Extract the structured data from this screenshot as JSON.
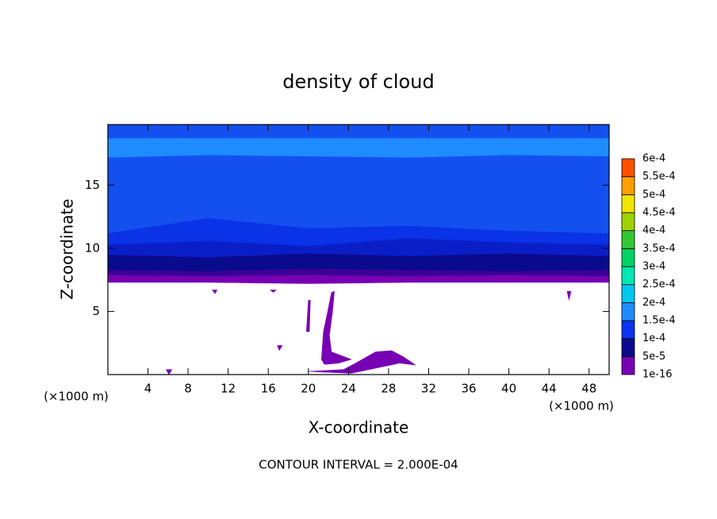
{
  "chart_data": {
    "type": "contour",
    "title": "density of cloud",
    "x_label": "X-coordinate",
    "y_label": "Z-coordinate",
    "x_unit_left": "(×1000 m)",
    "x_unit_right": "(×1000 m)",
    "note": "CONTOUR INTERVAL = 2.000E-04",
    "xlim": [
      0,
      50
    ],
    "ylim": [
      0,
      19.8
    ],
    "xticks": [
      4,
      8,
      12,
      16,
      20,
      24,
      28,
      32,
      36,
      40,
      44,
      48
    ],
    "yticks": [
      5,
      10,
      15
    ],
    "colorbar": {
      "levels": [
        {
          "value": 1e-16,
          "label": "1e-16"
        },
        {
          "value": 5e-05,
          "label": "5e-5"
        },
        {
          "value": 0.0001,
          "label": "1e-4"
        },
        {
          "value": 0.00015,
          "label": "1.5e-4"
        },
        {
          "value": 0.0002,
          "label": "2e-4"
        },
        {
          "value": 0.00025,
          "label": "2.5e-4"
        },
        {
          "value": 0.0003,
          "label": "3e-4"
        },
        {
          "value": 0.00035,
          "label": "3.5e-4"
        },
        {
          "value": 0.0004,
          "label": "4e-4"
        },
        {
          "value": 0.00045,
          "label": "4.5e-4"
        },
        {
          "value": 0.0005,
          "label": "5e-4"
        },
        {
          "value": 0.00055,
          "label": "5.5e-4"
        },
        {
          "value": 0.0006,
          "label": "6e-4"
        }
      ],
      "colors": [
        "#7800b4",
        "#0a0a8c",
        "#0a32f0",
        "#1e8cff",
        "#00c8f0",
        "#00e6b4",
        "#00d264",
        "#32c832",
        "#a0d200",
        "#f0e600",
        "#ffa000",
        "#ff5000"
      ]
    },
    "regions": [
      {
        "color": "#7800b4",
        "x": [
          0,
          10,
          20,
          30,
          40,
          50,
          50,
          0
        ],
        "z": [
          7.3,
          7.3,
          7.2,
          7.3,
          7.3,
          7.3,
          19.8,
          19.8
        ]
      },
      {
        "color": "#3c0096",
        "x": [
          0,
          10,
          20,
          30,
          40,
          50,
          50,
          0
        ],
        "z": [
          7.9,
          7.8,
          7.9,
          7.8,
          7.9,
          7.8,
          19.8,
          19.8
        ]
      },
      {
        "color": "#0a0a8c",
        "x": [
          0,
          10,
          20,
          30,
          40,
          50,
          50,
          0
        ],
        "z": [
          8.3,
          8.2,
          8.4,
          8.3,
          8.2,
          8.3,
          19.8,
          19.8
        ]
      },
      {
        "color": "#0a1ec8",
        "x": [
          0,
          10,
          20,
          30,
          40,
          50,
          50,
          0
        ],
        "z": [
          9.5,
          9.3,
          9.6,
          9.4,
          9.6,
          9.4,
          19.8,
          19.8
        ]
      },
      {
        "color": "#0a32e6",
        "x": [
          0,
          10,
          20,
          30,
          40,
          50,
          50,
          0
        ],
        "z": [
          10.3,
          10.6,
          10.2,
          10.8,
          10.5,
          10.3,
          19.8,
          19.8
        ]
      },
      {
        "color": "#1450f0",
        "x": [
          0,
          10,
          20,
          30,
          40,
          50,
          50,
          0
        ],
        "z": [
          11.2,
          12.4,
          11.6,
          11.8,
          11.4,
          11.2,
          19.8,
          19.8
        ]
      },
      {
        "color": "#1e8cff",
        "x": [
          0,
          10,
          20,
          30,
          40,
          50,
          50,
          0
        ],
        "z": [
          17.2,
          17.4,
          17.3,
          17.2,
          17.4,
          17.3,
          18.7,
          18.7
        ]
      },
      {
        "color": "#7800b4",
        "x": [
          20.0,
          23.5,
          24.7,
          26.7,
          28.3,
          29.5,
          30.7,
          29.1,
          26.7,
          24.3,
          21.1
        ],
        "z": [
          0.25,
          0.4,
          0.9,
          1.8,
          1.9,
          1.4,
          0.75,
          0.9,
          0.5,
          0.1,
          0.2
        ]
      },
      {
        "color": "#7800b4",
        "x": [
          21.3,
          21.5,
          21.9,
          22.3,
          22.6,
          22.4,
          22.1,
          22.3,
          24.3,
          23.0,
          21.6
        ],
        "z": [
          1.2,
          3.4,
          4.9,
          6.5,
          6.6,
          4.9,
          3.1,
          1.8,
          1.2,
          0.9,
          0.8
        ]
      },
      {
        "color": "#7800b4",
        "x": [
          19.8,
          20.0,
          20.2,
          20.1
        ],
        "z": [
          3.4,
          5.9,
          5.9,
          3.4
        ]
      },
      {
        "color": "#7800b4",
        "x": [
          10.4,
          10.9,
          10.7
        ],
        "z": [
          6.7,
          6.7,
          6.4
        ]
      },
      {
        "color": "#7800b4",
        "x": [
          16.2,
          16.8,
          16.5
        ],
        "z": [
          6.7,
          6.7,
          6.5
        ]
      },
      {
        "color": "#7800b4",
        "x": [
          16.9,
          17.4,
          17.1
        ],
        "z": [
          2.3,
          2.3,
          1.9
        ]
      },
      {
        "color": "#7800b4",
        "x": [
          45.8,
          46.2,
          46.0
        ],
        "z": [
          6.6,
          6.6,
          5.9
        ]
      },
      {
        "color": "#7800b4",
        "x": [
          5.8,
          6.4,
          6.1
        ],
        "z": [
          0.4,
          0.4,
          0.0
        ]
      }
    ]
  }
}
